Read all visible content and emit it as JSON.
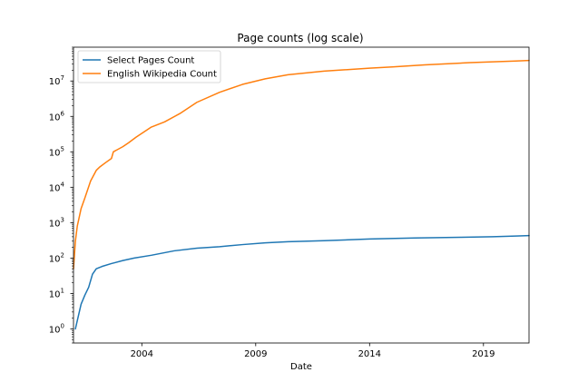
{
  "chart_data": {
    "type": "line",
    "title": "Page counts (log scale)",
    "xlabel": "Date",
    "ylabel": "",
    "yscale": "log",
    "xlim": [
      "2001-01-01",
      "2021-01-01"
    ],
    "ylim": [
      0.4,
      90000000
    ],
    "x_ticks": [
      "2004",
      "2009",
      "2014",
      "2019"
    ],
    "y_ticks": [
      {
        "value": 1,
        "base": "10",
        "exp": "0"
      },
      {
        "value": 10,
        "base": "10",
        "exp": "1"
      },
      {
        "value": 100,
        "base": "10",
        "exp": "2"
      },
      {
        "value": 1000,
        "base": "10",
        "exp": "3"
      },
      {
        "value": 10000,
        "base": "10",
        "exp": "4"
      },
      {
        "value": 100000,
        "base": "10",
        "exp": "5"
      },
      {
        "value": 1000000,
        "base": "10",
        "exp": "6"
      },
      {
        "value": 10000000,
        "base": "10",
        "exp": "7"
      }
    ],
    "grid": false,
    "legend_position": "upper-left",
    "series": [
      {
        "name": "Select Pages Count",
        "color": "#1f77b4",
        "x": [
          "2001-02-01",
          "2001-05-01",
          "2001-07-01",
          "2001-09-01",
          "2001-11-01",
          "2002-01-01",
          "2002-04-01",
          "2002-09-01",
          "2003-03-01",
          "2003-09-01",
          "2004-06-01",
          "2005-06-01",
          "2006-06-01",
          "2007-06-01",
          "2008-06-01",
          "2009-06-01",
          "2010-06-01",
          "2012-01-01",
          "2014-01-01",
          "2016-01-01",
          "2018-01-01",
          "2019-06-01",
          "2020-06-01",
          "2021-01-01"
        ],
        "y": [
          1,
          5,
          9,
          15,
          35,
          50,
          58,
          70,
          85,
          100,
          120,
          160,
          190,
          210,
          240,
          270,
          290,
          310,
          345,
          370,
          385,
          400,
          420,
          430
        ]
      },
      {
        "name": "English Wikipedia Count",
        "color": "#ff7f0e",
        "x": [
          "2001-01-01",
          "2001-02-01",
          "2001-03-01",
          "2001-05-01",
          "2001-07-01",
          "2001-10-01",
          "2002-01-01",
          "2002-03-01",
          "2002-06-01",
          "2002-09-01",
          "2002-10-01",
          "2003-03-01",
          "2003-06-01",
          "2003-10-01",
          "2004-06-01",
          "2005-01-01",
          "2005-09-01",
          "2006-06-01",
          "2007-06-01",
          "2008-06-01",
          "2009-06-01",
          "2010-06-01",
          "2012-01-01",
          "2014-01-01",
          "2015-01-01",
          "2016-06-01",
          "2018-06-01",
          "2020-06-01",
          "2021-01-01"
        ],
        "y": [
          50,
          300,
          800,
          2500,
          5000,
          15000,
          30000,
          38000,
          50000,
          65000,
          100000,
          140000,
          180000,
          260000,
          500000,
          700000,
          1200000,
          2500000,
          4800000,
          8000000,
          11500000,
          15000000,
          19000000,
          23000000,
          25000000,
          28500000,
          33000000,
          36500000,
          38000000
        ]
      }
    ]
  }
}
